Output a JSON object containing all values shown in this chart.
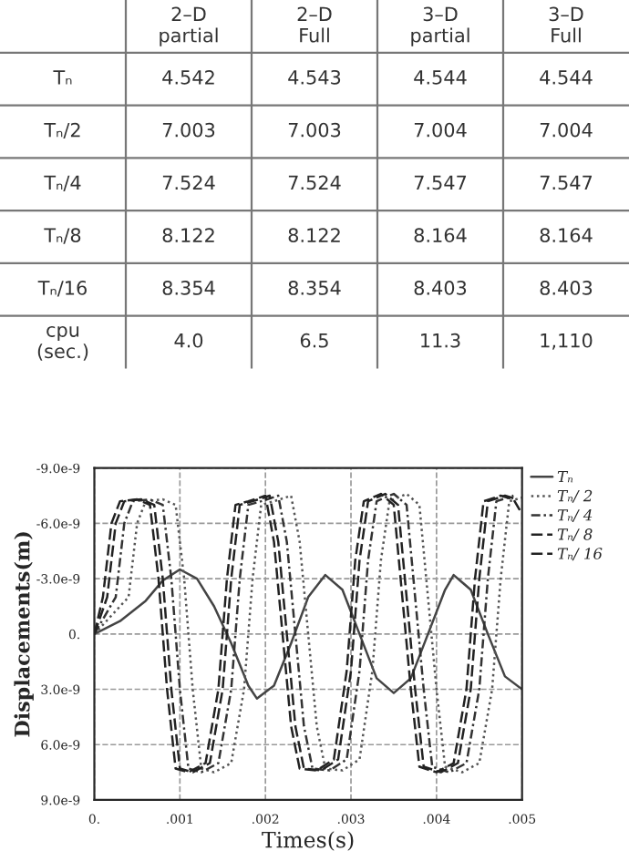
{
  "chart_data": [
    {
      "type": "other",
      "categories": [
        null,
        "2–D\npartial",
        "2–D\nFull",
        "3–D\npartial",
        "3–D\nFull"
      ],
      "y_categories": [
        "Tₙ",
        "Tₙ/2",
        "Tₙ/4",
        "Tₙ/8",
        "Tₙ/16",
        "cpu\n(sec.)"
      ],
      "cell_labels": [
        [
          "4.542",
          "4.543",
          "4.544",
          "4.544"
        ],
        [
          "7.003",
          "7.003",
          "7.004",
          "7.004"
        ],
        [
          "7.524",
          "7.524",
          "7.547",
          "7.547"
        ],
        [
          "8.122",
          "8.122",
          "8.164",
          "8.164"
        ],
        [
          "8.354",
          "8.354",
          "8.403",
          "8.403"
        ],
        [
          "4.0",
          "6.5",
          "11.3",
          "1,110"
        ]
      ]
    },
    {
      "type": "line",
      "xlabel": "Times(s)",
      "ylabel": "Displacements(m)",
      "grid": true,
      "legend": "top right",
      "xlim": [
        0,
        0.005
      ],
      "xticks": [
        {
          "value": 0,
          "label": "0."
        },
        {
          "value": 0.001,
          "label": ".001"
        },
        {
          "value": 0.002,
          "label": ".002"
        },
        {
          "value": 0.003,
          "label": ".003"
        },
        {
          "value": 0.004,
          "label": ".004"
        },
        {
          "value": 0.005,
          "label": ".005"
        }
      ],
      "ylim": [
        9e-09,
        -9e-09
      ],
      "yticks": [
        {
          "value": -9e-09,
          "label": "-9.0e-9"
        },
        {
          "value": -6e-09,
          "label": "-6.0e-9"
        },
        {
          "value": -3e-09,
          "label": "-3.0e-9"
        },
        {
          "value": 0,
          "label": "0."
        },
        {
          "value": 3e-09,
          "label": "3.0e-9"
        },
        {
          "value": 6e-09,
          "label": "6.0e-9"
        },
        {
          "value": 9e-09,
          "label": "9.0e-9"
        }
      ],
      "series": [
        {
          "name": "Tₙ",
          "color": "#444444",
          "line_style": "solid",
          "x": [
            0,
            0.0003,
            0.0006,
            0.0008,
            0.001,
            0.0012,
            0.0014,
            0.0016,
            0.0018,
            0.0019,
            0.0021,
            0.0023,
            0.0025,
            0.0027,
            0.0029,
            0.0031,
            0.0033,
            0.0035,
            0.0037,
            0.0039,
            0.0041,
            0.0042,
            0.0044,
            0.0046,
            0.0048,
            0.005
          ],
          "values": [
            0,
            -7e-10,
            -1.8e-09,
            -2.9e-09,
            -3.5e-09,
            -3e-09,
            -1.5e-09,
            5e-10,
            2.8e-09,
            3.5e-09,
            2.8e-09,
            5e-10,
            -2e-09,
            -3.2e-09,
            -2.4e-09,
            0,
            2.4e-09,
            3.2e-09,
            2.4e-09,
            0,
            -2.4e-09,
            -3.2e-09,
            -2.4e-09,
            0,
            2.3e-09,
            3e-09
          ]
        },
        {
          "name": "Tₙ/ 2",
          "color": "#555555",
          "line_style": "dotted",
          "x": [
            0,
            0.0004,
            0.0005,
            0.0006,
            0.0008,
            0.00095,
            0.00105,
            0.00115,
            0.00125,
            0.0014,
            0.0016,
            0.00175,
            0.00185,
            0.00195,
            0.0021,
            0.0023,
            0.0024,
            0.0025,
            0.0026,
            0.0027,
            0.0029,
            0.0031,
            0.00325,
            0.00335,
            0.00345,
            0.00365,
            0.0038,
            0.0039,
            0.004,
            0.0041,
            0.0043,
            0.0045,
            0.00465,
            0.00475,
            0.00485,
            0.005
          ],
          "values": [
            0,
            -2e-09,
            -6e-09,
            -7.2e-09,
            -7.3e-09,
            -7e-09,
            -3e-09,
            3e-09,
            7.3e-09,
            7.5e-09,
            7e-09,
            3e-09,
            -3e-09,
            -7e-09,
            -7.2e-09,
            -7.5e-09,
            -5e-09,
            0,
            5e-09,
            7.3e-09,
            7.4e-09,
            6.8e-09,
            2e-09,
            -4e-09,
            -7.2e-09,
            -7.6e-09,
            -7e-09,
            -2e-09,
            3e-09,
            7.2e-09,
            7.5e-09,
            7e-09,
            3e-09,
            -3e-09,
            -7.2e-09,
            -7.4e-09
          ]
        },
        {
          "name": "Tₙ/ 4",
          "color": "#333333",
          "line_style": "dashdot",
          "x": [
            0,
            0.00025,
            0.00035,
            0.00045,
            0.00065,
            0.0008,
            0.0009,
            0.001,
            0.0011,
            0.00125,
            0.00145,
            0.0016,
            0.0017,
            0.0018,
            0.00195,
            0.00215,
            0.00225,
            0.00235,
            0.00245,
            0.00255,
            0.00275,
            0.00295,
            0.0031,
            0.0032,
            0.0033,
            0.0035,
            0.00365,
            0.00375,
            0.00385,
            0.00395,
            0.00415,
            0.00435,
            0.0045,
            0.0046,
            0.0047,
            0.0049
          ],
          "values": [
            0,
            -2e-09,
            -6e-09,
            -7.2e-09,
            -7.3e-09,
            -7e-09,
            -3e-09,
            3e-09,
            7.3e-09,
            7.5e-09,
            7e-09,
            3e-09,
            -3e-09,
            -7e-09,
            -7.2e-09,
            -7.5e-09,
            -5e-09,
            0,
            5e-09,
            7.3e-09,
            7.4e-09,
            6.8e-09,
            2e-09,
            -4e-09,
            -7.2e-09,
            -7.6e-09,
            -7e-09,
            -2e-09,
            3e-09,
            7.2e-09,
            7.5e-09,
            7e-09,
            3e-09,
            -3e-09,
            -7.2e-09,
            -7.5e-09
          ]
        },
        {
          "name": "Tₙ/ 8",
          "color": "#222222",
          "line_style": "dashed",
          "x": [
            0,
            0.00015,
            0.00025,
            0.00035,
            0.00055,
            0.0007,
            0.0008,
            0.0009,
            0.001,
            0.00115,
            0.00135,
            0.0015,
            0.0016,
            0.0017,
            0.00185,
            0.00205,
            0.00215,
            0.00225,
            0.00235,
            0.00245,
            0.00265,
            0.00285,
            0.003,
            0.0031,
            0.0032,
            0.0034,
            0.00355,
            0.00365,
            0.00375,
            0.00385,
            0.00405,
            0.00425,
            0.0044,
            0.0045,
            0.0046,
            0.0048,
            0.00495
          ],
          "values": [
            0,
            -2e-09,
            -6e-09,
            -7.2e-09,
            -7.3e-09,
            -7e-09,
            -3e-09,
            3e-09,
            7.3e-09,
            7.5e-09,
            7e-09,
            3e-09,
            -3e-09,
            -7e-09,
            -7.2e-09,
            -7.5e-09,
            -5e-09,
            0,
            5e-09,
            7.3e-09,
            7.4e-09,
            6.8e-09,
            2e-09,
            -4e-09,
            -7.2e-09,
            -7.6e-09,
            -7e-09,
            -2e-09,
            3e-09,
            7.2e-09,
            7.5e-09,
            7e-09,
            3e-09,
            -3e-09,
            -7.2e-09,
            -7.5e-09,
            -7.3e-09
          ]
        },
        {
          "name": "Tₙ/ 16",
          "color": "#222222",
          "line_style": "dashed",
          "x": [
            0,
            0.0001,
            0.0002,
            0.0003,
            0.0005,
            0.00065,
            0.00075,
            0.00085,
            0.00095,
            0.0011,
            0.0013,
            0.00145,
            0.00155,
            0.00165,
            0.0018,
            0.002,
            0.0021,
            0.0022,
            0.0023,
            0.0024,
            0.0026,
            0.0028,
            0.00295,
            0.00305,
            0.00315,
            0.00335,
            0.0035,
            0.0036,
            0.0037,
            0.0038,
            0.004,
            0.0042,
            0.00435,
            0.00445,
            0.00455,
            0.00475,
            0.0049,
            0.005
          ],
          "values": [
            0,
            -2e-09,
            -6e-09,
            -7.2e-09,
            -7.3e-09,
            -7e-09,
            -3e-09,
            3e-09,
            7.3e-09,
            7.5e-09,
            7e-09,
            3e-09,
            -3e-09,
            -7e-09,
            -7.2e-09,
            -7.5e-09,
            -5e-09,
            0,
            5e-09,
            7.3e-09,
            7.4e-09,
            6.8e-09,
            2e-09,
            -4e-09,
            -7.2e-09,
            -7.6e-09,
            -7e-09,
            -2e-09,
            3e-09,
            7.2e-09,
            7.5e-09,
            7e-09,
            3e-09,
            -3e-09,
            -7.2e-09,
            -7.5e-09,
            -7.3e-09,
            -6.5e-09
          ]
        }
      ]
    }
  ]
}
